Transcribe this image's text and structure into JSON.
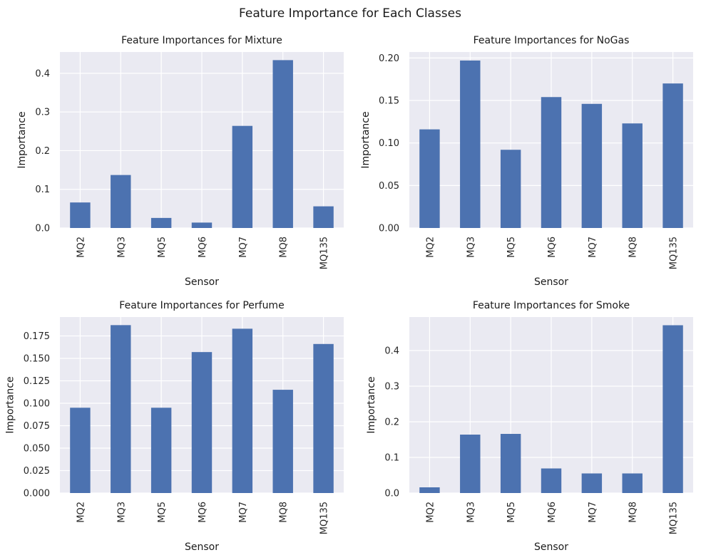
{
  "figure": {
    "title": "Feature Importance for Each Classes",
    "bar_color": "#4c72b0",
    "background_color": "#eaeaf2",
    "grid_color": "#ffffff"
  },
  "chart_data": [
    {
      "type": "bar",
      "title": "Feature Importances for Mixture",
      "xlabel": "Sensor",
      "ylabel": "Importance",
      "categories": [
        "MQ2",
        "MQ3",
        "MQ5",
        "MQ6",
        "MQ7",
        "MQ8",
        "MQ135"
      ],
      "values": [
        0.066,
        0.137,
        0.026,
        0.014,
        0.264,
        0.434,
        0.056
      ],
      "ylim": [
        0,
        0.455
      ],
      "yticks": [
        0.0,
        0.1,
        0.2,
        0.3,
        0.4
      ],
      "ytick_labels": [
        "0.0",
        "0.1",
        "0.2",
        "0.3",
        "0.4"
      ],
      "grid": true
    },
    {
      "type": "bar",
      "title": "Feature Importances for NoGas",
      "xlabel": "Sensor",
      "ylabel": "Importance",
      "categories": [
        "MQ2",
        "MQ3",
        "MQ5",
        "MQ6",
        "MQ7",
        "MQ8",
        "MQ135"
      ],
      "values": [
        0.116,
        0.197,
        0.092,
        0.154,
        0.146,
        0.123,
        0.17
      ],
      "ylim": [
        0,
        0.207
      ],
      "yticks": [
        0.0,
        0.05,
        0.1,
        0.15,
        0.2
      ],
      "ytick_labels": [
        "0.00",
        "0.05",
        "0.10",
        "0.15",
        "0.20"
      ],
      "grid": true
    },
    {
      "type": "bar",
      "title": "Feature Importances for Perfume",
      "xlabel": "Sensor",
      "ylabel": "Importance",
      "categories": [
        "MQ2",
        "MQ3",
        "MQ5",
        "MQ6",
        "MQ7",
        "MQ8",
        "MQ135"
      ],
      "values": [
        0.095,
        0.187,
        0.095,
        0.157,
        0.183,
        0.115,
        0.166
      ],
      "ylim": [
        0,
        0.196
      ],
      "yticks": [
        0.0,
        0.025,
        0.05,
        0.075,
        0.1,
        0.125,
        0.15,
        0.175
      ],
      "ytick_labels": [
        "0.000",
        "0.025",
        "0.050",
        "0.075",
        "0.100",
        "0.125",
        "0.150",
        "0.175"
      ],
      "grid": true
    },
    {
      "type": "bar",
      "title": "Feature Importances for Smoke",
      "xlabel": "Sensor",
      "ylabel": "Importance",
      "categories": [
        "MQ2",
        "MQ3",
        "MQ5",
        "MQ6",
        "MQ7",
        "MQ8",
        "MQ135"
      ],
      "values": [
        0.016,
        0.164,
        0.166,
        0.069,
        0.055,
        0.055,
        0.471
      ],
      "ylim": [
        0,
        0.494
      ],
      "yticks": [
        0.0,
        0.1,
        0.2,
        0.3,
        0.4
      ],
      "ytick_labels": [
        "0.0",
        "0.1",
        "0.2",
        "0.3",
        "0.4"
      ],
      "grid": true
    }
  ]
}
